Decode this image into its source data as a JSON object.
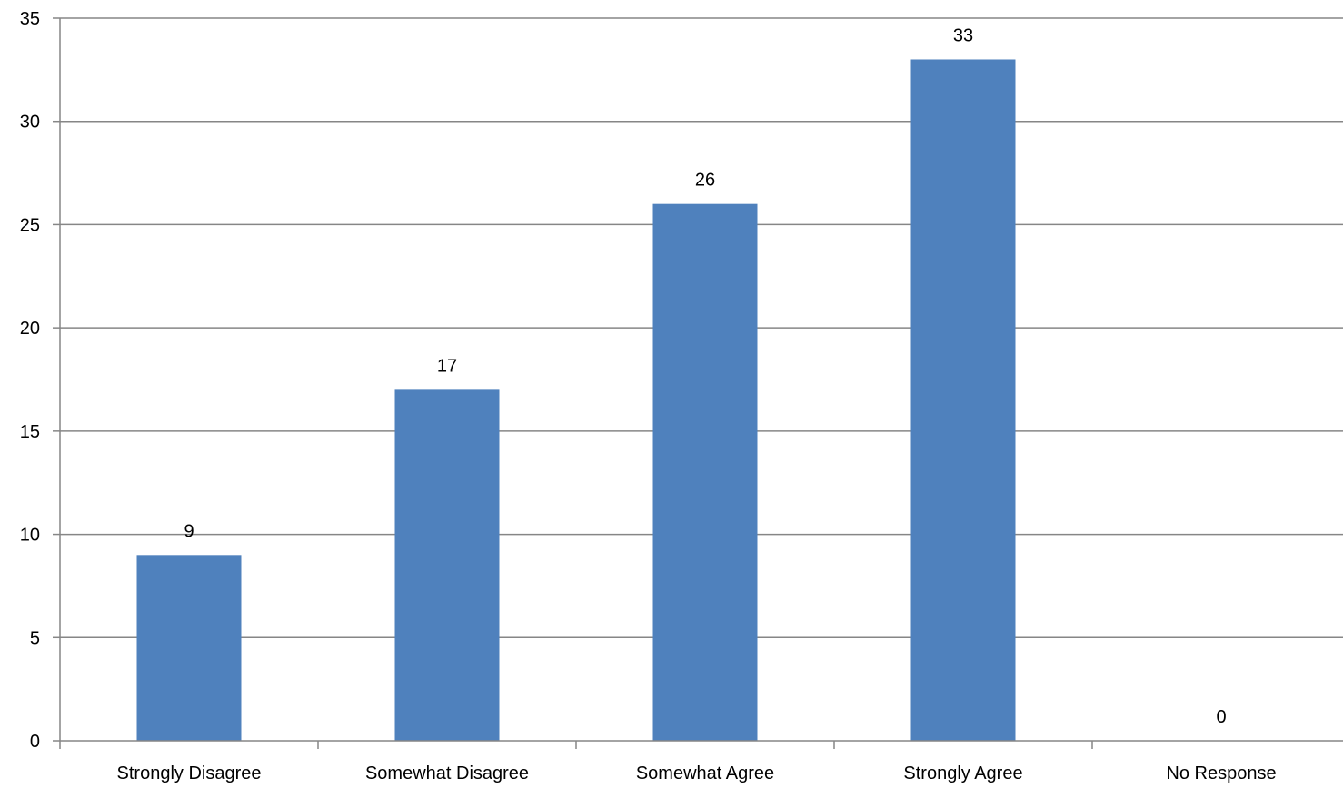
{
  "chart_data": {
    "type": "bar",
    "categories": [
      "Strongly Disagree",
      "Somewhat Disagree",
      "Somewhat Agree",
      "Strongly Agree",
      "No Response"
    ],
    "values": [
      9,
      17,
      26,
      33,
      0
    ],
    "data_labels": [
      "9",
      "17",
      "26",
      "33",
      "0"
    ],
    "title": "",
    "xlabel": "",
    "ylabel": "",
    "ylim": [
      0,
      35
    ],
    "yticks": [
      0,
      5,
      10,
      15,
      20,
      25,
      30,
      35
    ],
    "ytick_labels": [
      "0",
      "5",
      "10",
      "15",
      "20",
      "25",
      "30",
      "35"
    ],
    "grid": "horizontal",
    "legend": "none",
    "bar_color": "#4f81bd",
    "grid_color": "#868686"
  }
}
